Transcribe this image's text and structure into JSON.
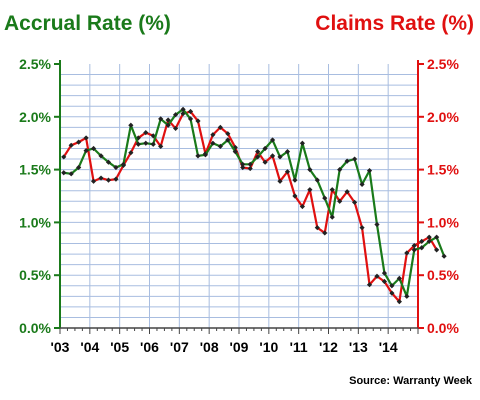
{
  "chart_data": {
    "type": "line",
    "left_title": "Accrual Rate (%)",
    "right_title": "Claims Rate (%)",
    "source": "Source: Warranty Week",
    "x_labels": [
      "'03",
      "'04",
      "'05",
      "'06",
      "'07",
      "'08",
      "'09",
      "'10",
      "'11",
      "'12",
      "'13",
      "'14"
    ],
    "y_ticks": [
      "0.0%",
      "0.5%",
      "1.0%",
      "1.5%",
      "2.0%",
      "2.5%"
    ],
    "ylim": [
      0,
      2.5
    ],
    "grid": true,
    "quarters_per_year": 4,
    "series": [
      {
        "name": "Accrual Rate",
        "color": "#1a7a1a",
        "axis": "left",
        "values": [
          1.47,
          1.46,
          1.52,
          1.68,
          1.7,
          1.63,
          1.57,
          1.52,
          1.55,
          1.92,
          1.74,
          1.75,
          1.74,
          1.98,
          1.92,
          2.02,
          2.07,
          1.98,
          1.63,
          1.64,
          1.75,
          1.72,
          1.78,
          1.67,
          1.55,
          1.55,
          1.62,
          1.7,
          1.78,
          1.62,
          1.67,
          1.4,
          1.75,
          1.5,
          1.4,
          1.23,
          1.05,
          1.5,
          1.58,
          1.6,
          1.36,
          1.49,
          0.98,
          0.52,
          0.4,
          0.47,
          0.3,
          0.74,
          0.76,
          0.82,
          0.86,
          0.68
        ]
      },
      {
        "name": "Claims Rate",
        "color": "#e01010",
        "axis": "right",
        "values": [
          1.62,
          1.73,
          1.76,
          1.8,
          1.39,
          1.42,
          1.4,
          1.41,
          1.54,
          1.66,
          1.8,
          1.85,
          1.82,
          1.72,
          1.97,
          1.89,
          2.03,
          2.05,
          1.96,
          1.65,
          1.83,
          1.9,
          1.84,
          1.71,
          1.52,
          1.51,
          1.67,
          1.57,
          1.63,
          1.39,
          1.48,
          1.25,
          1.15,
          1.31,
          0.95,
          0.9,
          1.31,
          1.2,
          1.29,
          1.19,
          0.95,
          0.41,
          0.49,
          0.44,
          0.33,
          0.25,
          0.71,
          0.78,
          0.82,
          0.86,
          0.74
        ]
      }
    ]
  }
}
